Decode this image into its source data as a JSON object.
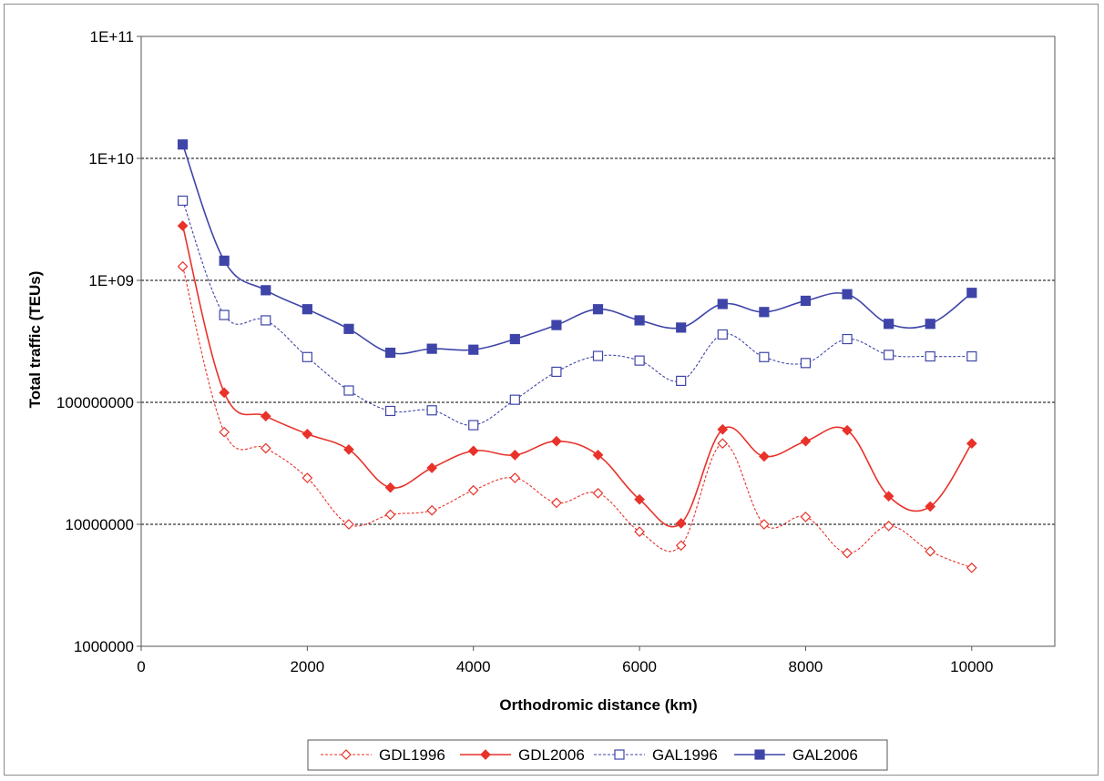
{
  "chart_data": {
    "type": "line",
    "y_scale": "log",
    "xlabel": "Orthodromic distance (km)",
    "ylabel": "Total traffic (TEUs)",
    "xlim": [
      0,
      11000
    ],
    "ylim": [
      1000000,
      100000000000
    ],
    "x_ticks": [
      {
        "value": 0,
        "label": "0"
      },
      {
        "value": 2000,
        "label": "2000"
      },
      {
        "value": 4000,
        "label": "4000"
      },
      {
        "value": 6000,
        "label": "6000"
      },
      {
        "value": 8000,
        "label": "8000"
      },
      {
        "value": 10000,
        "label": "10000"
      }
    ],
    "y_ticks": [
      {
        "value": 1000000,
        "label": "1000000"
      },
      {
        "value": 10000000,
        "label": "10000000"
      },
      {
        "value": 100000000,
        "label": "100000000"
      },
      {
        "value": 1000000000,
        "label": "1E+09"
      },
      {
        "value": 10000000000,
        "label": "1E+10"
      },
      {
        "value": 100000000000,
        "label": "1E+11"
      }
    ],
    "grid": "horizontal dashed",
    "legend_position": "bottom",
    "x": [
      500,
      1000,
      1500,
      2000,
      2500,
      3000,
      3500,
      4000,
      4500,
      5000,
      5500,
      6000,
      6500,
      7000,
      7500,
      8000,
      8500,
      9000,
      9500,
      10000
    ],
    "series": [
      {
        "name": "GDL1996",
        "color": "#e8322a",
        "line": "dashed",
        "marker": "diamond-open",
        "values": [
          1300000000,
          57000000,
          42000000,
          24000000,
          10000000,
          12000000,
          13000000,
          19000000,
          24000000,
          15000000,
          18000000,
          8700000,
          6700000,
          46000000,
          10000000,
          11500000,
          5800000,
          9700000,
          6000000,
          4400000
        ]
      },
      {
        "name": "GDL2006",
        "color": "#e8322a",
        "line": "solid",
        "marker": "diamond-filled",
        "values": [
          2800000000,
          120000000,
          77000000,
          55000000,
          41000000,
          20000000,
          29000000,
          40000000,
          37000000,
          48000000,
          37000000,
          16000000,
          10200000,
          60000000,
          36000000,
          48000000,
          59000000,
          17000000,
          14000000,
          46000000
        ]
      },
      {
        "name": "GAL1996",
        "color": "#3f45a8",
        "line": "dashed",
        "marker": "square-open",
        "values": [
          4500000000,
          520000000,
          470000000,
          235000000,
          125000000,
          85000000,
          86000000,
          65000000,
          105000000,
          178000000,
          240000000,
          220000000,
          150000000,
          360000000,
          235000000,
          210000000,
          330000000,
          245000000,
          238000000,
          238000000
        ]
      },
      {
        "name": "GAL2006",
        "color": "#3f45a8",
        "line": "solid",
        "marker": "square-filled",
        "values": [
          13000000000,
          1450000000,
          830000000,
          580000000,
          400000000,
          255000000,
          275000000,
          270000000,
          330000000,
          430000000,
          580000000,
          470000000,
          410000000,
          640000000,
          550000000,
          680000000,
          770000000,
          440000000,
          440000000,
          790000000
        ]
      }
    ]
  }
}
